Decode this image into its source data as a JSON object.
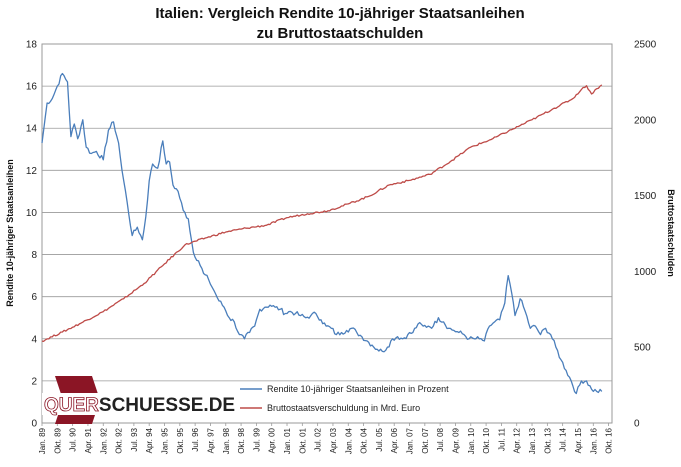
{
  "chart_data": {
    "type": "line",
    "title_line1": "Italien: Vergleich Rendite 10-jähriger Staatsanleihen",
    "title_line2": "zu Bruttostaatschulden",
    "ylabel_left": "Rendite 10-jähriger Staatsanleihen",
    "ylabel_right": "Bruttostaatschulden",
    "ylim_left": [
      0,
      18
    ],
    "ylim_right": [
      0,
      2500
    ],
    "yticks_left": [
      0,
      2,
      4,
      6,
      8,
      10,
      12,
      14,
      16,
      18
    ],
    "yticks_right": [
      0,
      500,
      1000,
      1500,
      2000,
      2500
    ],
    "grid": "horizontal",
    "legend_position": "bottom-center",
    "x_tick_labels": [
      "Jan. 89",
      "Okt. 89",
      "Jul. 90",
      "Apr. 91",
      "Jan. 92",
      "Okt. 92",
      "Jul. 93",
      "Apr. 94",
      "Jan. 95",
      "Okt. 95",
      "Jul. 96",
      "Apr. 97",
      "Jan. 98",
      "Okt. 98",
      "Jul. 99",
      "Apr. 00",
      "Jan. 01",
      "Okt. 01",
      "Jul. 02",
      "Apr. 03",
      "Jan. 04",
      "Okt. 04",
      "Jul. 05",
      "Apr. 06",
      "Jan. 07",
      "Okt. 07",
      "Jul. 08",
      "Apr. 09",
      "Jan. 10",
      "Okt. 10",
      "Jul. 11",
      "Apr. 12",
      "Jan. 13",
      "Okt. 13",
      "Jul. 14",
      "Apr. 15",
      "Jan. 16",
      "Okt. 16"
    ],
    "series": [
      {
        "name": "Rendite 10-jähriger Staatsanleihen in Prozent",
        "axis": "left",
        "color": "#4a7ebb",
        "x": [
          "1989-01",
          "1989-04",
          "1989-07",
          "1989-10",
          "1990-01",
          "1990-04",
          "1990-06",
          "1990-08",
          "1990-10",
          "1991-01",
          "1991-03",
          "1991-06",
          "1991-09",
          "1992-01",
          "1992-04",
          "1992-07",
          "1992-09",
          "1992-10",
          "1992-12",
          "1993-03",
          "1993-06",
          "1993-09",
          "1993-12",
          "1994-02",
          "1994-04",
          "1994-06",
          "1994-09",
          "1994-12",
          "1995-02",
          "1995-04",
          "1995-06",
          "1995-09",
          "1995-12",
          "1996-03",
          "1996-06",
          "1996-09",
          "1996-12",
          "1997-03",
          "1997-06",
          "1997-09",
          "1997-12",
          "1998-03",
          "1998-06",
          "1998-09",
          "1998-12",
          "1999-03",
          "1999-06",
          "1999-09",
          "1999-12",
          "2000-03",
          "2000-06",
          "2000-09",
          "2000-12",
          "2001-03",
          "2001-06",
          "2001-09",
          "2001-12",
          "2002-03",
          "2002-06",
          "2002-09",
          "2002-12",
          "2003-03",
          "2003-06",
          "2003-09",
          "2003-12",
          "2004-03",
          "2004-06",
          "2004-09",
          "2004-12",
          "2005-03",
          "2005-06",
          "2005-09",
          "2005-12",
          "2006-03",
          "2006-06",
          "2006-09",
          "2006-12",
          "2007-03",
          "2007-06",
          "2007-09",
          "2007-12",
          "2008-03",
          "2008-06",
          "2008-09",
          "2008-12",
          "2009-03",
          "2009-06",
          "2009-09",
          "2009-12",
          "2010-03",
          "2010-06",
          "2010-09",
          "2010-12",
          "2011-03",
          "2011-06",
          "2011-09",
          "2011-11",
          "2012-01",
          "2012-03",
          "2012-06",
          "2012-09",
          "2012-12",
          "2013-03",
          "2013-06",
          "2013-09",
          "2013-12",
          "2014-03",
          "2014-06",
          "2014-09",
          "2014-12",
          "2015-03",
          "2015-06",
          "2015-09",
          "2015-12",
          "2016-03",
          "2016-06"
        ],
        "values": [
          13.3,
          15.2,
          15.4,
          16.0,
          16.6,
          16.2,
          13.6,
          14.2,
          13.5,
          14.4,
          13.1,
          12.8,
          12.9,
          12.5,
          13.9,
          14.3,
          13.6,
          13.3,
          12.0,
          10.5,
          8.9,
          9.3,
          8.7,
          9.8,
          11.5,
          12.3,
          12.1,
          13.4,
          12.3,
          12.4,
          11.3,
          11.0,
          10.1,
          9.7,
          8.1,
          7.7,
          7.1,
          6.8,
          6.3,
          5.8,
          5.5,
          5.0,
          4.8,
          4.2,
          4.0,
          4.3,
          4.6,
          5.4,
          5.5,
          5.6,
          5.5,
          5.4,
          5.2,
          5.3,
          5.2,
          5.1,
          5.0,
          5.1,
          5.2,
          4.9,
          4.6,
          4.5,
          4.2,
          4.3,
          4.4,
          4.5,
          4.3,
          4.1,
          3.9,
          3.7,
          3.5,
          3.4,
          3.6,
          4.0,
          4.1,
          4.0,
          4.2,
          4.3,
          4.7,
          4.6,
          4.6,
          4.6,
          5.0,
          4.8,
          4.5,
          4.4,
          4.3,
          4.2,
          4.0,
          4.0,
          4.0,
          3.9,
          4.6,
          4.8,
          4.9,
          5.7,
          7.0,
          6.2,
          5.1,
          5.9,
          5.3,
          4.5,
          4.6,
          4.2,
          4.5,
          4.2,
          3.6,
          3.0,
          2.5,
          2.0,
          1.4,
          2.0,
          2.0,
          1.6,
          1.5,
          1.5
        ]
      },
      {
        "name": "Bruttostaatsverschuldung in Mrd. Euro",
        "axis": "right",
        "color": "#be4b48",
        "x": [
          "1989-01",
          "1990-01",
          "1991-01",
          "1992-01",
          "1993-01",
          "1994-01",
          "1995-01",
          "1996-01",
          "1997-01",
          "1998-01",
          "1999-01",
          "2000-01",
          "2001-01",
          "2002-01",
          "2003-01",
          "2004-01",
          "2005-01",
          "2006-01",
          "2007-01",
          "2008-01",
          "2009-01",
          "2010-01",
          "2011-01",
          "2012-01",
          "2013-01",
          "2014-01",
          "2015-01",
          "2015-06",
          "2015-09",
          "2015-12",
          "2016-03",
          "2016-06"
        ],
        "values": [
          540,
          600,
          665,
          735,
          820,
          920,
          1050,
          1175,
          1220,
          1260,
          1285,
          1305,
          1355,
          1380,
          1400,
          1445,
          1495,
          1570,
          1600,
          1640,
          1725,
          1820,
          1870,
          1935,
          2000,
          2070,
          2140,
          2200,
          2225,
          2170,
          2205,
          2230
        ]
      }
    ],
    "logo_text": "QUERSCHUESSE.DE"
  }
}
